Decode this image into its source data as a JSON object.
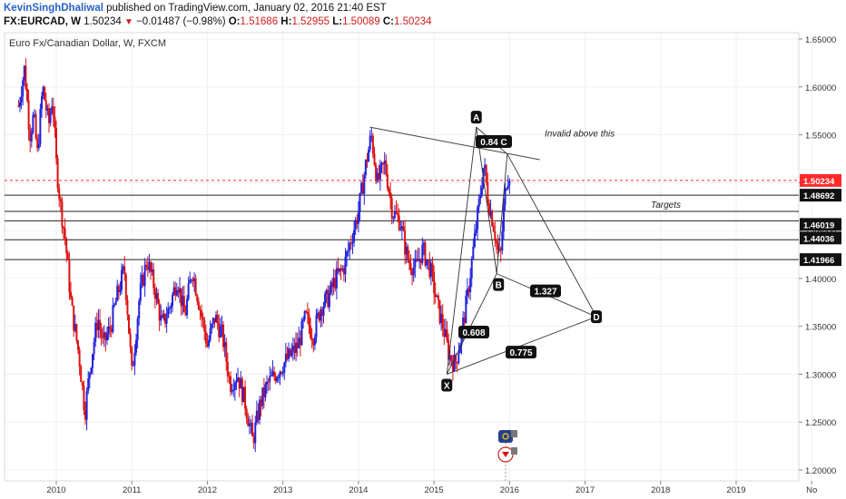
{
  "header": {
    "author": "KevinSinghDhaliwal",
    "published": "published on TradingView.com, January 02, 2016 21:40 EST",
    "symbol": "FX:EURCAD, W",
    "last": "1.50234",
    "change": "−0.01487 (−0.98%)",
    "open_label": "O:",
    "open": "1.51686",
    "high_label": "H:",
    "high": "1.52955",
    "low_label": "L:",
    "low": "1.50089",
    "close_label": "C:",
    "close": "1.50234"
  },
  "colors": {
    "up": "#2222dd",
    "down": "#dd1111",
    "price_line": "#ff2b2b",
    "grid": "#eef0f3"
  },
  "chart_data": {
    "type": "candlestick",
    "title": "Euro Fx/Canadian Dollar, W, FXCM",
    "ylim": [
      1.195,
      1.655
    ],
    "xlim": [
      2009.45,
      2020.0
    ],
    "y_ticks": [
      "1.20000",
      "1.25000",
      "1.30000",
      "1.35000",
      "1.40000",
      "1.45000",
      "1.50000",
      "1.55000",
      "1.60000",
      "1.65000"
    ],
    "x_ticks": [
      "2010",
      "2011",
      "2012",
      "2013",
      "2014",
      "2015",
      "2016",
      "2017",
      "2018",
      "2019",
      "No"
    ],
    "close_path": [
      [
        2009.5,
        1.58
      ],
      [
        2009.58,
        1.62
      ],
      [
        2009.65,
        1.55
      ],
      [
        2009.7,
        1.57
      ],
      [
        2009.75,
        1.53
      ],
      [
        2009.82,
        1.6
      ],
      [
        2009.9,
        1.56
      ],
      [
        2009.95,
        1.59
      ],
      [
        2010.0,
        1.52
      ],
      [
        2010.05,
        1.48
      ],
      [
        2010.12,
        1.44
      ],
      [
        2010.2,
        1.37
      ],
      [
        2010.3,
        1.32
      ],
      [
        2010.38,
        1.26
      ],
      [
        2010.45,
        1.31
      ],
      [
        2010.55,
        1.36
      ],
      [
        2010.62,
        1.33
      ],
      [
        2010.72,
        1.35
      ],
      [
        2010.8,
        1.38
      ],
      [
        2010.9,
        1.41
      ],
      [
        2010.95,
        1.36
      ],
      [
        2011.0,
        1.3
      ],
      [
        2011.1,
        1.38
      ],
      [
        2011.2,
        1.42
      ],
      [
        2011.3,
        1.39
      ],
      [
        2011.4,
        1.35
      ],
      [
        2011.5,
        1.37
      ],
      [
        2011.6,
        1.4
      ],
      [
        2011.7,
        1.36
      ],
      [
        2011.8,
        1.41
      ],
      [
        2011.9,
        1.37
      ],
      [
        2012.0,
        1.33
      ],
      [
        2012.1,
        1.36
      ],
      [
        2012.2,
        1.34
      ],
      [
        2012.3,
        1.29
      ],
      [
        2012.4,
        1.3
      ],
      [
        2012.5,
        1.27
      ],
      [
        2012.6,
        1.23
      ],
      [
        2012.7,
        1.27
      ],
      [
        2012.8,
        1.29
      ],
      [
        2012.9,
        1.3
      ],
      [
        2013.0,
        1.31
      ],
      [
        2013.1,
        1.32
      ],
      [
        2013.2,
        1.33
      ],
      [
        2013.3,
        1.36
      ],
      [
        2013.4,
        1.34
      ],
      [
        2013.5,
        1.37
      ],
      [
        2013.6,
        1.38
      ],
      [
        2013.7,
        1.4
      ],
      [
        2013.8,
        1.41
      ],
      [
        2013.9,
        1.44
      ],
      [
        2014.0,
        1.47
      ],
      [
        2014.1,
        1.52
      ],
      [
        2014.17,
        1.55
      ],
      [
        2014.25,
        1.5
      ],
      [
        2014.35,
        1.52
      ],
      [
        2014.45,
        1.47
      ],
      [
        2014.55,
        1.46
      ],
      [
        2014.65,
        1.42
      ],
      [
        2014.75,
        1.41
      ],
      [
        2014.85,
        1.43
      ],
      [
        2014.95,
        1.41
      ],
      [
        2015.05,
        1.37
      ],
      [
        2015.12,
        1.35
      ],
      [
        2015.2,
        1.32
      ],
      [
        2015.28,
        1.31
      ],
      [
        2015.36,
        1.34
      ],
      [
        2015.44,
        1.38
      ],
      [
        2015.52,
        1.43
      ],
      [
        2015.6,
        1.48
      ],
      [
        2015.66,
        1.52
      ],
      [
        2015.72,
        1.48
      ],
      [
        2015.78,
        1.46
      ],
      [
        2015.84,
        1.43
      ],
      [
        2015.88,
        1.42
      ],
      [
        2015.92,
        1.47
      ],
      [
        2015.97,
        1.51
      ],
      [
        2016.0,
        1.50234
      ]
    ],
    "last_price": "1.50234",
    "horizontal_levels": [
      "1.48692",
      "1.46019",
      "1.44036",
      "1.41966"
    ],
    "pattern": {
      "points": {
        "X": [
          2015.17,
          1.3
        ],
        "A": [
          2015.56,
          1.558
        ],
        "B": [
          2015.83,
          1.405
        ],
        "C": [
          2015.97,
          1.53
        ],
        "D": [
          2017.15,
          1.36
        ]
      },
      "point_labels": [
        "X",
        "A",
        "B",
        "C",
        "D"
      ],
      "ratios": {
        "xb": "0.608",
        "ac": "0.84",
        "bd": "1.327",
        "xd": "0.775"
      },
      "ac_label": "0.84 C"
    },
    "resistance": {
      "from": [
        2014.15,
        1.558
      ],
      "to": [
        2016.4,
        1.524
      ]
    },
    "annotations": {
      "invalid": "Invalid above this",
      "targets": "Targets"
    }
  }
}
